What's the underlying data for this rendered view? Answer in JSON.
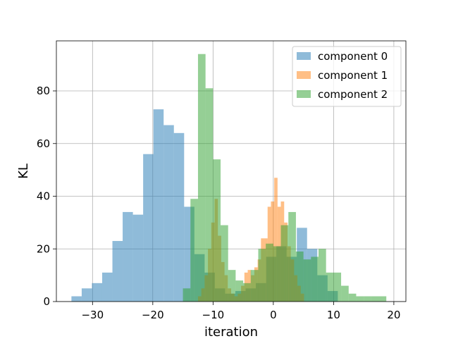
{
  "chart_data": {
    "type": "histogram",
    "title": "",
    "xlabel": "iteration",
    "ylabel": "KL",
    "xlim": [
      -36,
      22
    ],
    "ylim": [
      0,
      99
    ],
    "xticks": [
      -30,
      -20,
      -10,
      0,
      10,
      20
    ],
    "xtick_labels": [
      "−30",
      "−20",
      "−10",
      "0",
      "10",
      "20"
    ],
    "yticks": [
      0,
      20,
      40,
      60,
      80
    ],
    "ytick_labels": [
      "0",
      "20",
      "40",
      "60",
      "80"
    ],
    "grid": true,
    "legend_position": "top-right",
    "series": [
      {
        "name": "component 0",
        "color": "#1f77b4",
        "bin_width": 1.7,
        "bins": [
          {
            "x0": -33.5,
            "value": 2
          },
          {
            "x0": -31.8,
            "value": 5
          },
          {
            "x0": -30.1,
            "value": 7
          },
          {
            "x0": -28.4,
            "value": 11
          },
          {
            "x0": -26.7,
            "value": 23
          },
          {
            "x0": -25.0,
            "value": 34
          },
          {
            "x0": -23.3,
            "value": 33
          },
          {
            "x0": -21.6,
            "value": 56
          },
          {
            "x0": -19.9,
            "value": 73
          },
          {
            "x0": -18.2,
            "value": 67
          },
          {
            "x0": -16.5,
            "value": 64
          },
          {
            "x0": -14.8,
            "value": 36
          },
          {
            "x0": -13.1,
            "value": 18
          },
          {
            "x0": -11.4,
            "value": 11
          },
          {
            "x0": -9.7,
            "value": 5
          },
          {
            "x0": -8.0,
            "value": 3
          },
          {
            "x0": -6.3,
            "value": 4
          },
          {
            "x0": -4.6,
            "value": 5
          },
          {
            "x0": -2.9,
            "value": 7
          },
          {
            "x0": -1.2,
            "value": 17
          },
          {
            "x0": 0.5,
            "value": 21
          },
          {
            "x0": 2.2,
            "value": 17
          },
          {
            "x0": 3.9,
            "value": 28
          },
          {
            "x0": 5.6,
            "value": 20
          },
          {
            "x0": 7.3,
            "value": 10
          },
          {
            "x0": 9.0,
            "value": 4
          }
        ]
      },
      {
        "name": "component 1",
        "color": "#ff7f0e",
        "bin_width": 0.55,
        "bins": [
          {
            "x0": -12.5,
            "value": 2
          },
          {
            "x0": -11.95,
            "value": 5
          },
          {
            "x0": -11.4,
            "value": 10
          },
          {
            "x0": -10.85,
            "value": 20
          },
          {
            "x0": -10.3,
            "value": 30
          },
          {
            "x0": -9.75,
            "value": 39
          },
          {
            "x0": -9.2,
            "value": 25
          },
          {
            "x0": -8.65,
            "value": 15
          },
          {
            "x0": -8.1,
            "value": 10
          },
          {
            "x0": -7.55,
            "value": 5
          },
          {
            "x0": -7.0,
            "value": 3
          },
          {
            "x0": -6.45,
            "value": 2
          },
          {
            "x0": -5.9,
            "value": 3
          },
          {
            "x0": -5.35,
            "value": 6
          },
          {
            "x0": -4.8,
            "value": 11
          },
          {
            "x0": -4.25,
            "value": 12
          },
          {
            "x0": -3.7,
            "value": 10
          },
          {
            "x0": -3.15,
            "value": 13
          },
          {
            "x0": -2.6,
            "value": 16
          },
          {
            "x0": -2.05,
            "value": 24
          },
          {
            "x0": -1.5,
            "value": 24
          },
          {
            "x0": -0.95,
            "value": 36
          },
          {
            "x0": -0.4,
            "value": 38
          },
          {
            "x0": 0.15,
            "value": 47
          },
          {
            "x0": 0.7,
            "value": 36
          },
          {
            "x0": 1.25,
            "value": 38
          },
          {
            "x0": 1.8,
            "value": 30
          },
          {
            "x0": 2.35,
            "value": 21
          },
          {
            "x0": 2.9,
            "value": 16
          },
          {
            "x0": 3.45,
            "value": 10
          },
          {
            "x0": 4.0,
            "value": 6
          },
          {
            "x0": 4.55,
            "value": 3
          }
        ]
      },
      {
        "name": "component 2",
        "color": "#2ca02c",
        "bin_width": 1.25,
        "bins": [
          {
            "x0": -15.0,
            "value": 5
          },
          {
            "x0": -13.75,
            "value": 39
          },
          {
            "x0": -12.5,
            "value": 94
          },
          {
            "x0": -11.25,
            "value": 81
          },
          {
            "x0": -10.0,
            "value": 54
          },
          {
            "x0": -8.75,
            "value": 29
          },
          {
            "x0": -7.5,
            "value": 12
          },
          {
            "x0": -6.25,
            "value": 8
          },
          {
            "x0": -5.0,
            "value": 7
          },
          {
            "x0": -3.75,
            "value": 12
          },
          {
            "x0": -2.5,
            "value": 20
          },
          {
            "x0": -1.25,
            "value": 22
          },
          {
            "x0": 0.0,
            "value": 21
          },
          {
            "x0": 1.25,
            "value": 29
          },
          {
            "x0": 2.5,
            "value": 34
          },
          {
            "x0": 3.75,
            "value": 19
          },
          {
            "x0": 5.0,
            "value": 16
          },
          {
            "x0": 6.25,
            "value": 17
          },
          {
            "x0": 7.5,
            "value": 20
          },
          {
            "x0": 8.75,
            "value": 11
          },
          {
            "x0": 10.0,
            "value": 11
          },
          {
            "x0": 11.25,
            "value": 6
          },
          {
            "x0": 12.5,
            "value": 3
          },
          {
            "x0": 13.75,
            "value": 2
          },
          {
            "x0": 15.0,
            "value": 2
          },
          {
            "x0": 16.25,
            "value": 2
          },
          {
            "x0": 17.5,
            "value": 2
          }
        ]
      }
    ]
  }
}
